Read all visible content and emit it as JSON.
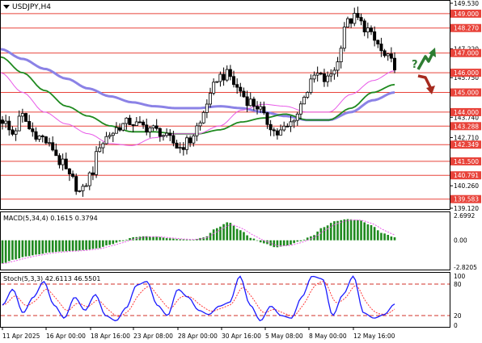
{
  "chart_data": {
    "type": "candlestick",
    "symbol_label": "USDJPY,H4",
    "price_axis": {
      "ylim": [
        139.12,
        149.53
      ],
      "tick_labels": [
        "149.530",
        "147.220",
        "145.750",
        "143.740",
        "142.710",
        "140.260",
        "139.120"
      ],
      "tick_values": [
        149.53,
        147.22,
        145.75,
        143.74,
        142.71,
        140.26,
        139.12
      ]
    },
    "levels": [
      {
        "value": 149.0,
        "label": "149.000"
      },
      {
        "value": 148.27,
        "label": "148.270"
      },
      {
        "value": 147.0,
        "label": "147.000"
      },
      {
        "value": 146.0,
        "label": "146.000"
      },
      {
        "value": 145.0,
        "label": "145.000"
      },
      {
        "value": 144.0,
        "label": "144.000"
      },
      {
        "value": 143.288,
        "label": "143.288"
      },
      {
        "value": 142.349,
        "label": "142.349"
      },
      {
        "value": 141.5,
        "label": "141.500"
      },
      {
        "value": 140.791,
        "label": "140.791"
      },
      {
        "value": 139.583,
        "label": "139.583"
      }
    ],
    "x_labels": [
      "11 Apr 2025",
      "16 Apr 00:00",
      "18 Apr 16:00",
      "23 Apr 08:00",
      "28 Apr 00:00",
      "30 Apr 16:00",
      "5 May 08:00",
      "8 May 00:00",
      "12 May 16:00"
    ],
    "price_anchors": [
      143.6,
      142.9,
      143.8,
      143.0,
      142.7,
      142.2,
      141.4,
      140.6,
      139.9,
      140.8,
      142.4,
      142.9,
      143.3,
      143.5,
      143.3,
      143.2,
      143.0,
      142.6,
      142.2,
      142.5,
      143.3,
      144.6,
      145.8,
      145.9,
      145.2,
      144.6,
      144.3,
      143.5,
      142.9,
      143.2,
      143.9,
      145.1,
      145.9,
      145.6,
      146.3,
      148.5,
      148.8,
      148.3,
      147.6,
      146.8,
      146.4
    ],
    "indicators": {
      "ma_violet_anchors": [
        147.2,
        146.7,
        146.2,
        145.7,
        145.2,
        144.8,
        144.5,
        144.3,
        144.2,
        144.2,
        144.3,
        144.2,
        144.0,
        143.8,
        143.6,
        143.6,
        144.0,
        144.6,
        145.0
      ],
      "ma_green_anchors": [
        146.8,
        146.0,
        145.1,
        144.3,
        143.8,
        143.3,
        143.0,
        143.0,
        142.9,
        142.9,
        143.1,
        143.5,
        143.7,
        143.9,
        143.6,
        143.6,
        144.2,
        145.0,
        145.4
      ],
      "ma_magenta_anchors": [
        146.0,
        145.0,
        144.0,
        143.4,
        142.9,
        142.4,
        142.3,
        142.7,
        142.9,
        142.9,
        143.3,
        144.1,
        144.4,
        144.3,
        144.0,
        144.0,
        144.9,
        145.6,
        146.1
      ]
    },
    "forecast": {
      "question_mark": "?",
      "up_color": "#2e7d32",
      "down_color": "#a62b1f"
    },
    "macd": {
      "label": "MACD(5,34,4) 0.1615 0.3794",
      "ylim": [
        -2.8205,
        2.6992
      ],
      "tick_labels": [
        "2.6992",
        "0.00",
        "-2.8205"
      ],
      "tick_values": [
        2.6992,
        0.0,
        -2.8205
      ],
      "hist_anchors": [
        -2.3,
        -1.9,
        -1.6,
        -1.4,
        -1.2,
        -1.1,
        -1.05,
        -0.95,
        -0.8,
        -0.45,
        -0.1,
        0.3,
        0.4,
        0.35,
        0.2,
        0.1,
        0.05,
        0.3,
        1.2,
        1.8,
        1.0,
        0.2,
        -0.3,
        -0.7,
        -0.5,
        -0.1,
        0.4,
        1.3,
        1.9,
        2.1,
        2.0,
        1.5,
        0.7,
        0.3
      ],
      "color": "#1f8a1f"
    },
    "stoch": {
      "label": "Stoch(5,3,3) 42.6113 46.5501",
      "ylim": [
        0,
        100
      ],
      "tick_labels": [
        "100",
        "80",
        "20",
        "0"
      ],
      "tick_values": [
        100,
        80,
        20,
        0
      ],
      "k_anchors": [
        40,
        70,
        25,
        55,
        85,
        40,
        15,
        55,
        30,
        60,
        20,
        10,
        35,
        78,
        85,
        40,
        20,
        70,
        55,
        30,
        22,
        38,
        45,
        95,
        40,
        10,
        38,
        20,
        15,
        55,
        95,
        90,
        20,
        60,
        95,
        25,
        15,
        22,
        42
      ],
      "k_color": "#1a1aff",
      "d_color": "#ff3a3a"
    },
    "colors": {
      "bull_candle": "#ffffff",
      "bear_candle": "#000000",
      "level_line": "#e8433a",
      "ma_violet": "#8b82e6",
      "ma_green": "#1f8a1f",
      "ma_magenta": "#e85ae8"
    }
  }
}
